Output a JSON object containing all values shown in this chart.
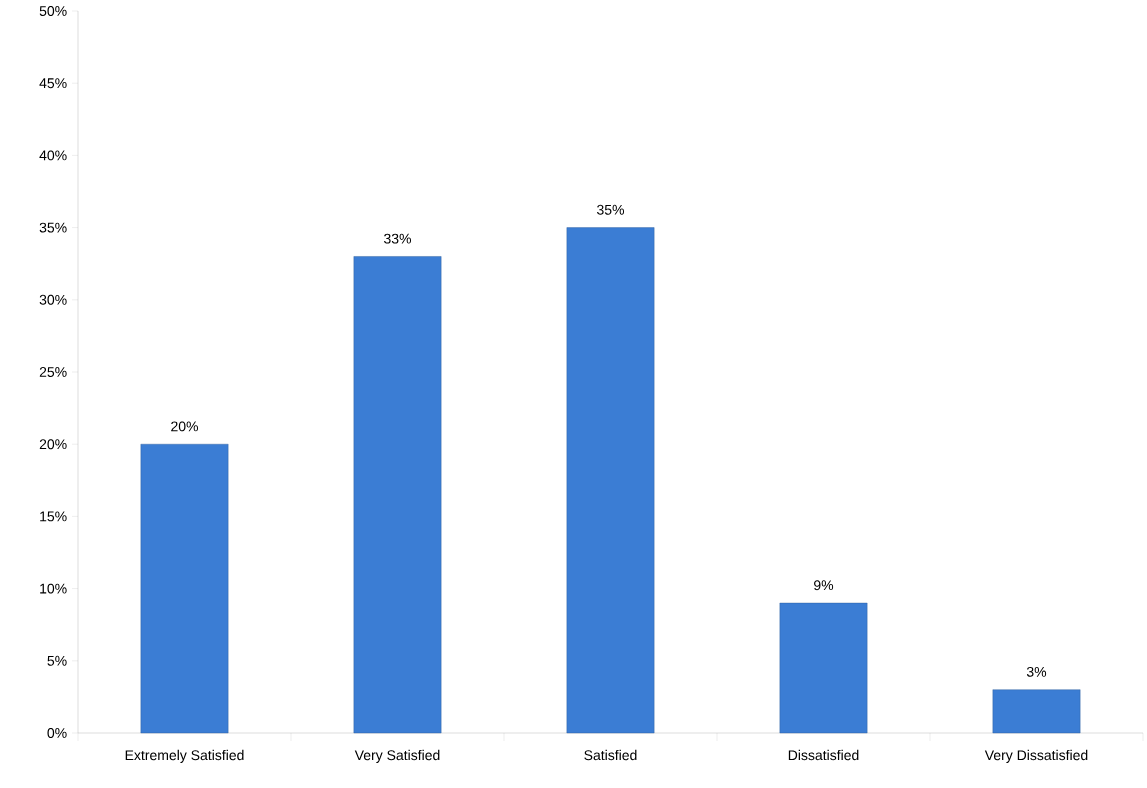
{
  "chart_data": {
    "type": "bar",
    "categories": [
      "Extremely Satisfied",
      "Very Satisfied",
      "Satisfied",
      "Dissatisfied",
      "Very Dissatisfied"
    ],
    "values": [
      20,
      33,
      35,
      9,
      3
    ],
    "color": "#3b7dd4",
    "ylim": [
      0,
      50
    ],
    "yticks": [
      {
        "value": 0,
        "label": "0%"
      },
      {
        "value": 5,
        "label": "5%"
      },
      {
        "value": 10,
        "label": "10%"
      },
      {
        "value": 15,
        "label": "15%"
      },
      {
        "value": 20,
        "label": "20%"
      },
      {
        "value": 25,
        "label": "25%"
      },
      {
        "value": 30,
        "label": "30%"
      },
      {
        "value": 35,
        "label": "35%"
      },
      {
        "value": 40,
        "label": "40%"
      },
      {
        "value": 45,
        "label": "45%"
      },
      {
        "value": 50,
        "label": "50%"
      }
    ],
    "value_labels": [
      "20%",
      "33%",
      "35%",
      "9%",
      "3%"
    ],
    "grid": false
  }
}
